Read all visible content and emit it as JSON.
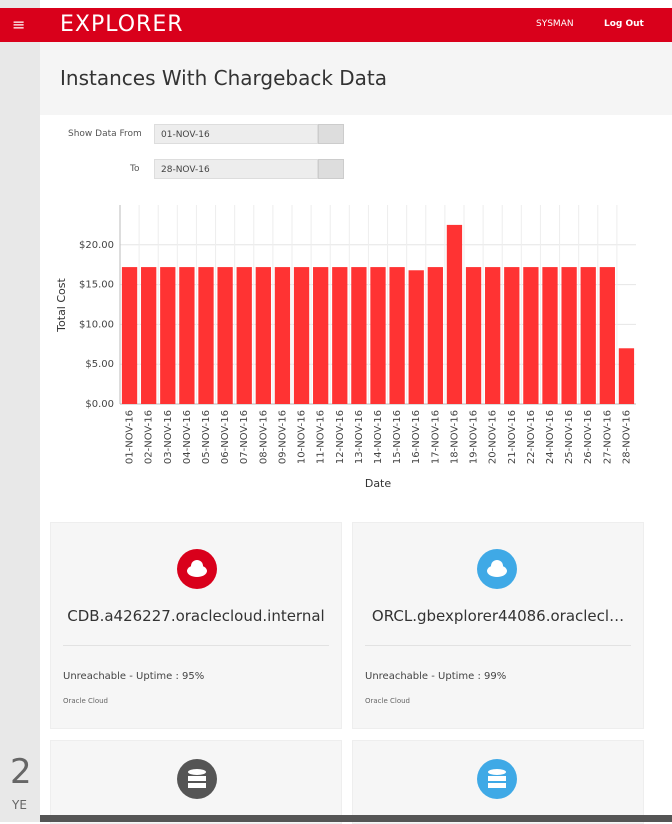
{
  "header": {
    "brand": "EXPLORER",
    "user": "SYSMAN",
    "logout": "Log Out"
  },
  "page": {
    "title": "Instances With Chargeback Data"
  },
  "filters": {
    "from_label": "Show Data From",
    "from_value": "01-NOV-16",
    "to_label": "To",
    "to_value": "28-NOV-16"
  },
  "chart_data": {
    "type": "bar",
    "x_label": "Date",
    "y_label": "Total Cost",
    "color": "#ff3333",
    "categories": [
      "01-NOV-16",
      "02-NOV-16",
      "03-NOV-16",
      "04-NOV-16",
      "05-NOV-16",
      "06-NOV-16",
      "07-NOV-16",
      "08-NOV-16",
      "09-NOV-16",
      "10-NOV-16",
      "11-NOV-16",
      "12-NOV-16",
      "13-NOV-16",
      "14-NOV-16",
      "15-NOV-16",
      "16-NOV-16",
      "17-NOV-16",
      "18-NOV-16",
      "19-NOV-16",
      "20-NOV-16",
      "21-NOV-16",
      "22-NOV-16",
      "24-NOV-16",
      "25-NOV-16",
      "26-NOV-16",
      "27-NOV-16",
      "28-NOV-16"
    ],
    "values": [
      17.2,
      17.2,
      17.2,
      17.2,
      17.2,
      17.2,
      17.2,
      17.2,
      17.2,
      17.2,
      17.2,
      17.2,
      17.2,
      17.2,
      17.2,
      16.8,
      17.2,
      22.5,
      17.2,
      17.2,
      17.2,
      17.2,
      17.2,
      17.2,
      17.2,
      17.2,
      7.0
    ],
    "ylim": [
      0,
      25
    ],
    "yticks": [
      {
        "value": 0,
        "label": "$0.00"
      },
      {
        "value": 5,
        "label": "$5.00"
      },
      {
        "value": 10,
        "label": "$10.00"
      },
      {
        "value": 15,
        "label": "$15.00"
      },
      {
        "value": 20,
        "label": "$20.00"
      }
    ],
    "grid": true
  },
  "cards": [
    {
      "name": "CDB.a426227.oraclecloud.internal",
      "status": "Unreachable - Uptime : 95%",
      "source": "Oracle Cloud"
    },
    {
      "name": "ORCL.gbexplorer44086.oraclecl…",
      "status": "Unreachable - Uptime : 99%",
      "source": "Oracle Cloud"
    }
  ],
  "sidebar": {
    "logo_number": "2",
    "logo_text": "YE"
  }
}
